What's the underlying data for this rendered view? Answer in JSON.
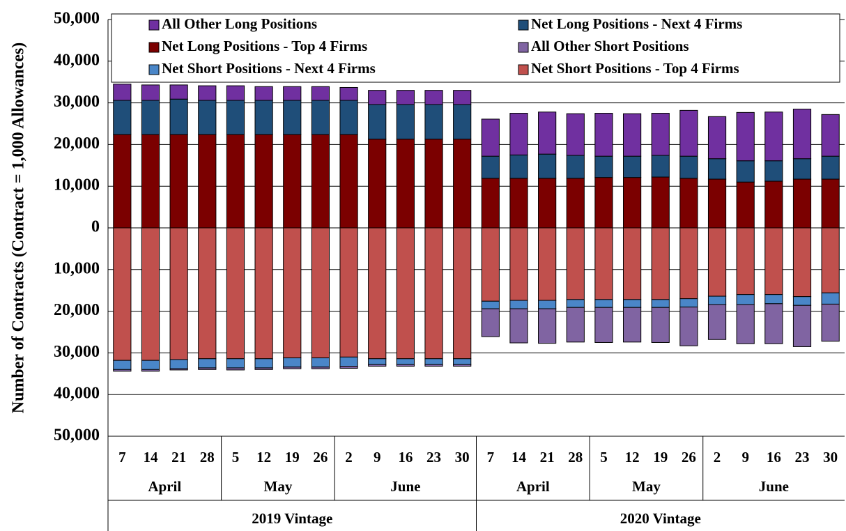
{
  "chart_data": {
    "type": "bar",
    "stacked": true,
    "y_label": "Number of Contracts (Contract = 1,000 Allowances)",
    "categories": [
      "7",
      "14",
      "21",
      "28",
      "5",
      "12",
      "19",
      "26",
      "2",
      "9",
      "16",
      "23",
      "30",
      "7",
      "14",
      "21",
      "28",
      "5",
      "12",
      "19",
      "26",
      "2",
      "9",
      "16",
      "23",
      "30"
    ],
    "months": [
      "April",
      "April",
      "April",
      "April",
      "May",
      "May",
      "May",
      "May",
      "June",
      "June",
      "June",
      "June",
      "June",
      "April",
      "April",
      "April",
      "April",
      "May",
      "May",
      "May",
      "May",
      "June",
      "June",
      "June",
      "June",
      "June"
    ],
    "vintages": [
      "2019 Vintage",
      "2019 Vintage",
      "2019 Vintage",
      "2019 Vintage",
      "2019 Vintage",
      "2019 Vintage",
      "2019 Vintage",
      "2019 Vintage",
      "2019 Vintage",
      "2019 Vintage",
      "2019 Vintage",
      "2019 Vintage",
      "2019 Vintage",
      "2020 Vintage",
      "2020 Vintage",
      "2020 Vintage",
      "2020 Vintage",
      "2020 Vintage",
      "2020 Vintage",
      "2020 Vintage",
      "2020 Vintage",
      "2020 Vintage",
      "2020 Vintage",
      "2020 Vintage",
      "2020 Vintage",
      "2020 Vintage"
    ],
    "series": [
      {
        "name": "All Other Long Positions",
        "color": "#7030a0",
        "values": [
          3900,
          3700,
          3400,
          3500,
          3500,
          3300,
          3300,
          3300,
          3100,
          3400,
          3400,
          3400,
          3400,
          8900,
          10000,
          10100,
          10000,
          10300,
          10200,
          10100,
          11000,
          10100,
          11600,
          11700,
          11900,
          10000
        ]
      },
      {
        "name": "Net Long Positions - Next 4 Firms",
        "color": "#1f4e79",
        "values": [
          8200,
          8200,
          8500,
          8200,
          8200,
          8200,
          8200,
          8200,
          8200,
          8300,
          8300,
          8300,
          8300,
          5300,
          5600,
          5800,
          5500,
          5100,
          5100,
          5200,
          5300,
          4900,
          5100,
          4900,
          4900,
          5500
        ]
      },
      {
        "name": "Net Long Positions - Top 4 Firms",
        "color": "#7b0000",
        "values": [
          22400,
          22400,
          22400,
          22400,
          22400,
          22400,
          22400,
          22400,
          22400,
          21300,
          21300,
          21300,
          21300,
          11900,
          11900,
          11900,
          11900,
          12100,
          12100,
          12200,
          11900,
          11700,
          11000,
          11200,
          11700,
          11700
        ]
      },
      {
        "name": "All Other Short Positions",
        "color": "#8064a2",
        "values": [
          -400,
          -400,
          -300,
          -400,
          -500,
          -400,
          -400,
          -400,
          -500,
          -400,
          -400,
          -400,
          -400,
          -6700,
          -8200,
          -8300,
          -8300,
          -8400,
          -8300,
          -8400,
          -9300,
          -8400,
          -9400,
          -9600,
          -9900,
          -8900
        ]
      },
      {
        "name": "Net Short Positions - Next 4 Firms",
        "color": "#4a86c8",
        "values": [
          -2200,
          -2200,
          -2200,
          -2200,
          -2200,
          -2200,
          -2200,
          -2200,
          -2200,
          -1400,
          -1400,
          -1400,
          -1400,
          -1800,
          -2000,
          -2000,
          -1900,
          -1900,
          -1900,
          -1900,
          -2000,
          -2000,
          -2400,
          -2200,
          -2100,
          -2700
        ]
      },
      {
        "name": "Net Short Positions - Top 4 Firms",
        "color": "#c0504d",
        "values": [
          -31800,
          -31800,
          -31600,
          -31400,
          -31400,
          -31400,
          -31200,
          -31200,
          -31000,
          -31400,
          -31400,
          -31400,
          -31400,
          -17600,
          -17400,
          -17400,
          -17200,
          -17200,
          -17200,
          -17200,
          -17000,
          -16400,
          -16000,
          -16000,
          -16500,
          -15600
        ]
      }
    ],
    "ylim": [
      -50000,
      50000
    ],
    "yticks": [
      {
        "value": 50000,
        "label": "50,000"
      },
      {
        "value": 40000,
        "label": "40,000"
      },
      {
        "value": 30000,
        "label": "30,000"
      },
      {
        "value": 20000,
        "label": "20,000"
      },
      {
        "value": 10000,
        "label": "10,000"
      },
      0,
      {
        "value": -10000,
        "label": "10,000"
      },
      {
        "value": -20000,
        "label": "20,000"
      },
      {
        "value": -30000,
        "label": "30,000"
      },
      {
        "value": -40000,
        "label": "40,000"
      },
      {
        "value": -50000,
        "label": "50,000"
      }
    ],
    "grid": true
  }
}
